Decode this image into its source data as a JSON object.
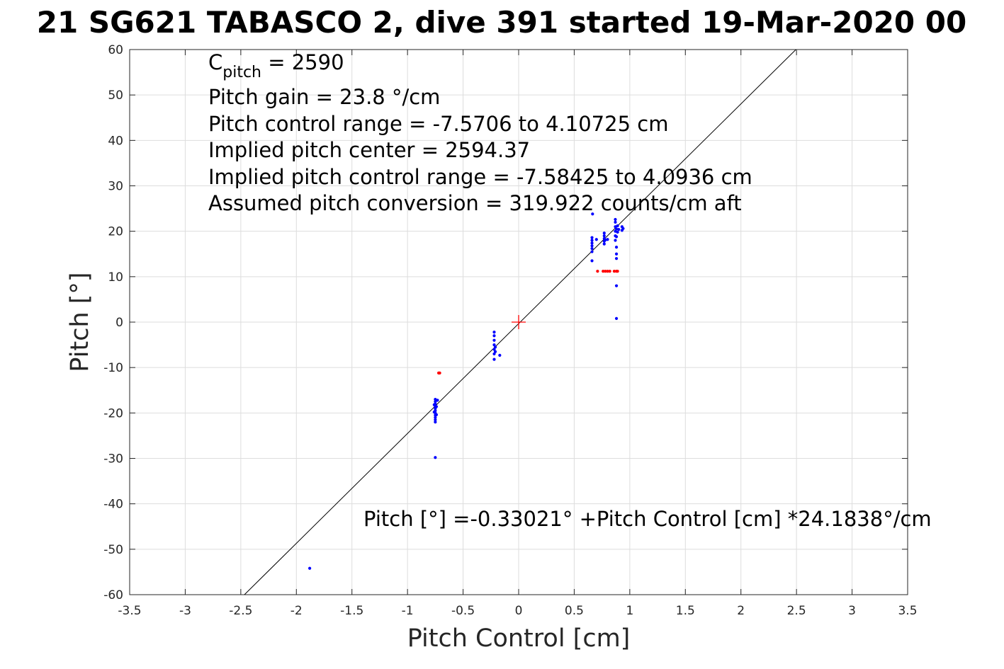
{
  "chart_data": {
    "type": "scatter",
    "title": "21 SG621 TABASCO 2, dive 391 started 19-Mar-2020 00",
    "xlabel": "Pitch Control [cm]",
    "ylabel": "Pitch [°]",
    "xlim": [
      -3.5,
      3.5
    ],
    "ylim": [
      -60,
      60
    ],
    "xticks": [
      -3.5,
      -3,
      -2.5,
      -2,
      -1.5,
      -1,
      -0.5,
      0,
      0.5,
      1,
      1.5,
      2,
      2.5,
      3,
      3.5
    ],
    "xtick_labels": [
      "-3.5",
      "-3",
      "-2.5",
      "-2",
      "-1.5",
      "-1",
      "-0.5",
      "0",
      "0.5",
      "1",
      "1.5",
      "2",
      "2.5",
      "3",
      "3.5"
    ],
    "yticks": [
      -60,
      -50,
      -40,
      -30,
      -20,
      -10,
      0,
      10,
      20,
      30,
      40,
      50,
      60
    ],
    "ytick_labels": [
      "-60",
      "-50",
      "-40",
      "-30",
      "-20",
      "-10",
      "0",
      "10",
      "20",
      "30",
      "40",
      "50",
      "60"
    ],
    "grid": true,
    "annotations": {
      "cpitch_base": "C",
      "cpitch_sub": "pitch",
      "cpitch_value": " = 2590",
      "lines": [
        "Pitch gain = 23.8 °/cm",
        "Pitch control range = -7.5706 to 4.10725 cm",
        "Implied pitch center = 2594.37",
        "Implied pitch control range = -7.58425 to 4.0936 cm",
        "Assumed pitch conversion = 319.922 counts/cm aft"
      ],
      "fit_equation": "Pitch [°] =-0.33021° +Pitch Control [cm] *24.1838°/cm"
    },
    "fit_line": {
      "intercept": -0.33021,
      "slope": 24.1838,
      "color": "#000000"
    },
    "center_marker": {
      "x": 0,
      "y": 0,
      "color": "#ff0000"
    },
    "series": [
      {
        "color": "#0000ff",
        "points": [
          [
            -1.88,
            -54.2
          ],
          [
            -0.75,
            -29.8
          ],
          [
            -0.75,
            -17
          ],
          [
            -0.75,
            -17.5
          ],
          [
            -0.75,
            -18
          ],
          [
            -0.75,
            -18.5
          ],
          [
            -0.75,
            -19
          ],
          [
            -0.75,
            -19.5
          ],
          [
            -0.75,
            -20
          ],
          [
            -0.75,
            -20.5
          ],
          [
            -0.75,
            -21
          ],
          [
            -0.75,
            -21.5
          ],
          [
            -0.75,
            -22
          ],
          [
            -0.76,
            -18.2
          ],
          [
            -0.76,
            -19.8
          ],
          [
            -0.74,
            -18.6
          ],
          [
            -0.74,
            -20.4
          ],
          [
            -0.73,
            -17.2
          ],
          [
            -0.22,
            -2.2
          ],
          [
            -0.22,
            -3
          ],
          [
            -0.22,
            -4
          ],
          [
            -0.22,
            -5
          ],
          [
            -0.22,
            -6
          ],
          [
            -0.22,
            -7
          ],
          [
            -0.22,
            -8.2
          ],
          [
            -0.21,
            -5.5
          ],
          [
            -0.21,
            -6.5
          ],
          [
            -0.17,
            -7.3
          ],
          [
            0.66,
            13.5
          ],
          [
            0.66,
            15.5
          ],
          [
            0.66,
            16.2
          ],
          [
            0.66,
            16.8
          ],
          [
            0.66,
            17.4
          ],
          [
            0.66,
            18
          ],
          [
            0.66,
            18.6
          ],
          [
            0.665,
            23.8
          ],
          [
            0.7,
            18.2
          ],
          [
            0.77,
            17.2
          ],
          [
            0.77,
            17.8
          ],
          [
            0.77,
            18.4
          ],
          [
            0.77,
            19
          ],
          [
            0.77,
            19.6
          ],
          [
            0.78,
            18.1
          ],
          [
            0.8,
            18.2
          ],
          [
            0.87,
            18
          ],
          [
            0.87,
            19
          ],
          [
            0.87,
            20
          ],
          [
            0.87,
            21
          ],
          [
            0.87,
            22
          ],
          [
            0.87,
            22.6
          ],
          [
            0.88,
            16.5
          ],
          [
            0.88,
            15
          ],
          [
            0.88,
            14
          ],
          [
            0.88,
            8
          ],
          [
            0.88,
            0.8
          ],
          [
            0.88,
            18.8
          ],
          [
            0.88,
            20.5
          ],
          [
            0.89,
            19.8
          ],
          [
            0.89,
            21.2
          ],
          [
            0.9,
            20.4
          ],
          [
            0.93,
            20.2
          ],
          [
            0.93,
            21
          ],
          [
            0.94,
            20.6
          ]
        ]
      },
      {
        "color": "#ff0000",
        "points": [
          [
            -0.72,
            -11.2
          ],
          [
            -0.71,
            -11.2
          ],
          [
            0.71,
            11.2
          ],
          [
            0.76,
            11.2
          ],
          [
            0.78,
            11.2
          ],
          [
            0.8,
            11.2
          ],
          [
            0.82,
            11.2
          ],
          [
            0.86,
            11.2
          ],
          [
            0.88,
            11.2
          ],
          [
            0.89,
            11.2
          ]
        ]
      }
    ]
  }
}
